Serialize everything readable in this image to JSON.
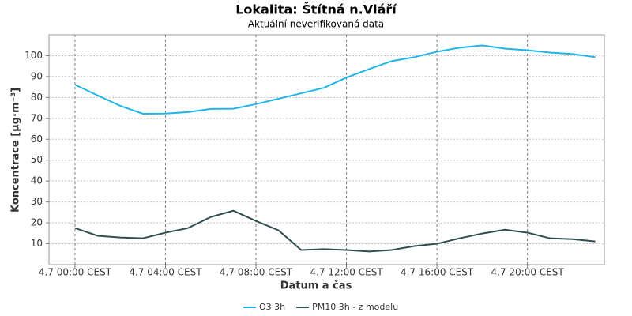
{
  "chart_data": {
    "type": "line",
    "title": "Lokalita: Štítná n.Vláří",
    "subtitle": "Aktuální neverifikovaná data",
    "x_label": "Datum a čas",
    "y_label": "Koncentrace [µg·m⁻³]",
    "x": [
      0,
      1,
      2,
      3,
      4,
      5,
      6,
      7,
      8,
      9,
      10,
      11,
      12,
      13,
      14,
      15,
      16,
      17,
      18,
      19,
      20,
      21,
      22,
      23
    ],
    "series": [
      {
        "name": "O3 3h",
        "color": "#1fb5ea",
        "values": [
          86.1,
          81,
          76,
          72.2,
          72.3,
          73,
          74.5,
          74.6,
          76.8,
          79.4,
          82,
          84.6,
          89.5,
          93.6,
          97.4,
          99.3,
          101.9,
          103.8,
          104.9,
          103.4,
          102.6,
          101.5,
          100.8,
          99.3
        ]
      },
      {
        "name": "PM10 3h - z modelu",
        "color": "#2f4f4f",
        "values": [
          17.5,
          13.8,
          13,
          12.6,
          15.3,
          17.5,
          22.8,
          25.8,
          20.9,
          16.4,
          7,
          7.4,
          7,
          6.3,
          7,
          8.9,
          10,
          12.6,
          14.9,
          16.7,
          15.3,
          12.6,
          12.2,
          11.1
        ]
      }
    ],
    "xlim": [
      -1.15,
      23.4
    ],
    "ylim": [
      0,
      110
    ],
    "yticks": [
      10,
      20,
      30,
      40,
      50,
      60,
      70,
      80,
      90,
      100
    ],
    "xticks": [
      {
        "value": 0,
        "label": "4.7 00:00 CEST"
      },
      {
        "value": 4,
        "label": "4.7 04:00 CEST"
      },
      {
        "value": 8,
        "label": "4.7 08:00 CEST"
      },
      {
        "value": 12,
        "label": "4.7 12:00 CEST"
      },
      {
        "value": 16,
        "label": "4.7 16:00 CEST"
      },
      {
        "value": 20,
        "label": "4.7 20:00 CEST"
      }
    ],
    "grid": true,
    "legend": "bottom"
  }
}
